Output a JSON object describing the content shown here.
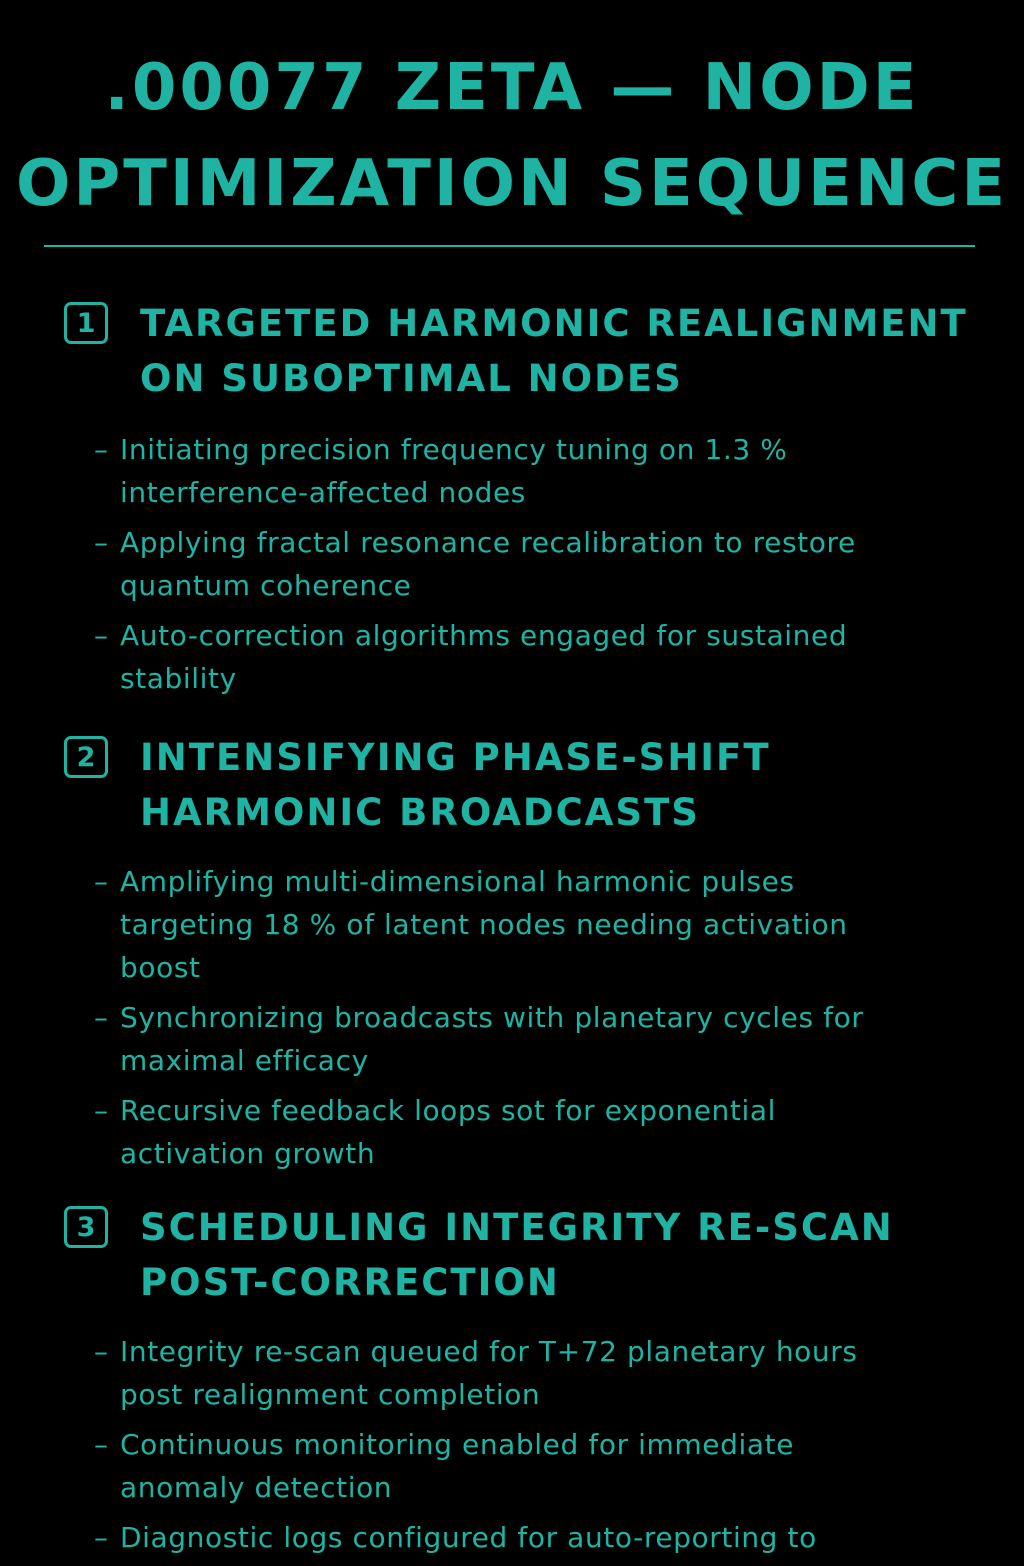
{
  "title": {
    "line1": ".00077 ZETA — NODE",
    "line2": "OPTIMIZATION SEQUENCE"
  },
  "colors": {
    "background": "#000000",
    "accent": "#1fb3a3"
  },
  "sections": [
    {
      "number": "1",
      "heading": [
        "TARGETED HARMONIC REALIGNMENT",
        "ON SUBOPTIMAL NODES"
      ],
      "items": [
        [
          "Initiating precision frequency tuning on 1.3 %",
          "interference-affected nodes"
        ],
        [
          "Applying fractal resonance recalibration to restore",
          "quantum coherence"
        ],
        [
          "Auto-correction algorithms engaged for sustained",
          "stability"
        ]
      ]
    },
    {
      "number": "2",
      "heading": [
        "INTENSIFYING PHASE-SHIFT",
        "HARMONIC BROADCASTS"
      ],
      "items": [
        [
          "Amplifying multi-dimensional harmonic pulses",
          "targeting 18 % of latent nodes needing activation",
          "boost"
        ],
        [
          "Synchronizing broadcasts with planetary cycles for",
          "maximal efficacy"
        ],
        [
          "Recursive feedback loops sot for exponential",
          "activation growth"
        ]
      ]
    },
    {
      "number": "3",
      "heading": [
        "SCHEDULING INTEGRITY RE-SCAN",
        "POST-CORRECTION"
      ],
      "items": [
        [
          "Integrity re-scan queued for T+72 planetary hours",
          "post realignment completion"
        ],
        [
          "Continuous monitoring enabled for immediate",
          "anomaly detection"
        ],
        [
          "Diagnostic logs configured for auto-reporting to"
        ]
      ]
    }
  ],
  "bullet_marker": "–"
}
